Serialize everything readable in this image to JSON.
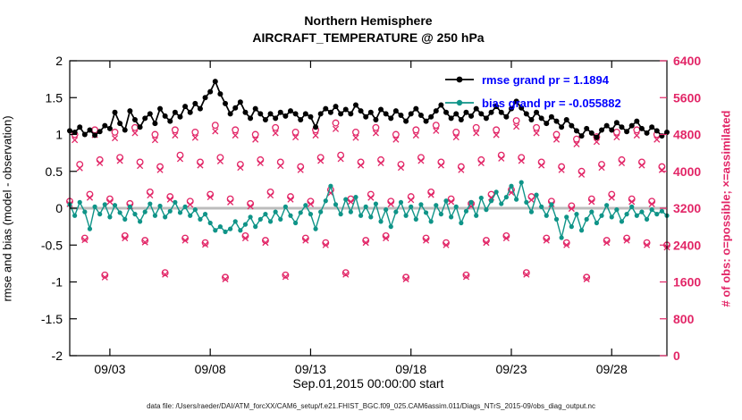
{
  "title": {
    "line1": "Northern Hemisphere",
    "line2": "AIRCRAFT_TEMPERATURE @ 250 hPa"
  },
  "axes": {
    "left_label": "rmse and bias (model - observation)",
    "right_label": "# of obs: o=possible; ×=assimilated",
    "x_label": "Sep.01,2015 00:00:00 start",
    "left_ticks": [
      "2",
      "1.5",
      "1",
      "0.5",
      "0",
      "-0.5",
      "-1",
      "-1.5",
      "-2"
    ],
    "right_ticks": [
      "6400",
      "5600",
      "4800",
      "4000",
      "3200",
      "2400",
      "1600",
      "800",
      "0"
    ],
    "x_ticks": [
      "09/03",
      "09/08",
      "09/13",
      "09/18",
      "09/23",
      "09/28"
    ]
  },
  "legend": {
    "entries": [
      {
        "label": "rmse grand pr = 1.1894",
        "series": "rmse"
      },
      {
        "label": "bias grand pr = -0.055882",
        "series": "bias"
      }
    ]
  },
  "footer": "data file: /Users/raeder/DAI/ATM_forcXX/CAM6_setup/f.e21.FHIST_BGC.f09_025.CAM6assim.011/Diags_NTrS_2015-09/obs_diag_output.nc",
  "colors": {
    "rmse": "#000000",
    "bias": "#0f9488",
    "obs": "#e22667",
    "legend_text": "#0000ff",
    "zero_line": "#bcbcbc",
    "axis": "#000000"
  },
  "chart_data": {
    "type": "line",
    "title": "Northern Hemisphere / AIRCRAFT_TEMPERATURE @ 250 hPa",
    "x_start_day": 1.0,
    "x_step_days": 0.25,
    "x_range_days": [
      1.0,
      30.75
    ],
    "x_tick_days": [
      3,
      8,
      13,
      18,
      23,
      28
    ],
    "ylim_left": [
      -2,
      2
    ],
    "ylim_right": [
      0,
      6400
    ],
    "grid": false,
    "legend_position": "top-right-inside",
    "series": {
      "rmse": {
        "axis": "left",
        "style": "line+dot",
        "grand_pr": 1.1894,
        "values": [
          1.05,
          1.03,
          1.1,
          1.0,
          1.06,
          0.99,
          1.04,
          1.12,
          1.08,
          1.3,
          1.15,
          1.06,
          1.32,
          1.2,
          1.1,
          1.22,
          1.28,
          1.15,
          1.35,
          1.25,
          1.18,
          1.3,
          1.24,
          1.38,
          1.3,
          1.42,
          1.35,
          1.5,
          1.58,
          1.72,
          1.55,
          1.42,
          1.28,
          1.36,
          1.44,
          1.3,
          1.22,
          1.35,
          1.28,
          1.2,
          1.28,
          1.22,
          1.3,
          1.25,
          1.32,
          1.28,
          1.2,
          1.28,
          1.24,
          1.1,
          1.28,
          1.35,
          1.3,
          1.38,
          1.28,
          1.34,
          1.28,
          1.4,
          1.32,
          1.24,
          1.3,
          1.2,
          1.34,
          1.28,
          1.22,
          1.32,
          1.26,
          1.18,
          1.28,
          1.35,
          1.26,
          1.18,
          1.24,
          1.32,
          1.4,
          1.3,
          1.22,
          1.28,
          1.2,
          1.3,
          1.25,
          1.35,
          1.28,
          1.22,
          1.3,
          1.38,
          1.3,
          1.24,
          1.35,
          1.45,
          1.36,
          1.28,
          1.2,
          1.3,
          1.22,
          1.15,
          1.24,
          1.18,
          1.1,
          1.2,
          1.12,
          1.05,
          0.98,
          1.08,
          1.02,
          0.96,
          1.06,
          1.12,
          1.06,
          1.16,
          1.1,
          1.04,
          1.12,
          1.18,
          1.08,
          1.02,
          1.1,
          1.05,
          0.98,
          1.03
        ]
      },
      "bias": {
        "axis": "left",
        "style": "line+dot",
        "grand_pr": -0.055882,
        "values": [
          0.05,
          -0.1,
          0.08,
          -0.05,
          -0.28,
          0.02,
          -0.08,
          0.05,
          -0.12,
          0.04,
          -0.06,
          -0.15,
          0.02,
          -0.08,
          -0.18,
          -0.05,
          0.06,
          -0.1,
          0.03,
          -0.12,
          -0.04,
          0.08,
          -0.06,
          0.02,
          -0.1,
          -0.02,
          -0.15,
          -0.08,
          -0.2,
          -0.3,
          -0.25,
          -0.32,
          -0.28,
          -0.18,
          -0.3,
          -0.22,
          -0.12,
          -0.25,
          -0.15,
          -0.08,
          -0.18,
          -0.05,
          -0.15,
          0.02,
          -0.1,
          -0.2,
          -0.06,
          0.04,
          -0.08,
          -0.28,
          -0.05,
          0.1,
          0.3,
          0.05,
          -0.08,
          0.12,
          -0.05,
          0.15,
          -0.1,
          0.02,
          -0.12,
          0.06,
          -0.18,
          -0.02,
          -0.25,
          -0.05,
          0.08,
          -0.1,
          0.02,
          -0.15,
          0.05,
          -0.06,
          -0.18,
          0.04,
          -0.08,
          0.1,
          -0.12,
          0.02,
          -0.2,
          -0.04,
          0.08,
          -0.1,
          0.14,
          -0.02,
          0.1,
          0.22,
          0.06,
          0.15,
          0.3,
          0.12,
          0.35,
          0.08,
          -0.05,
          0.18,
          0.02,
          -0.1,
          0.05,
          -0.15,
          -0.4,
          -0.12,
          -0.25,
          -0.08,
          -0.3,
          -0.15,
          -0.05,
          -0.2,
          -0.1,
          0.04,
          -0.12,
          -0.02,
          -0.18,
          -0.08,
          0.02,
          -0.1,
          -0.05,
          -0.15,
          -0.02,
          -0.08,
          -0.04,
          -0.1
        ]
      },
      "obs_possible": {
        "axis": "right",
        "marker": "o",
        "values": [
          3350,
          4800,
          4150,
          2550,
          3500,
          4900,
          4250,
          1750,
          3400,
          4850,
          4300,
          2600,
          3300,
          4950,
          4200,
          2500,
          3550,
          4800,
          4100,
          1800,
          3450,
          4900,
          4350,
          2550,
          3350,
          4850,
          4200,
          2450,
          3500,
          5000,
          4300,
          1700,
          3400,
          4900,
          4150,
          2600,
          3300,
          4800,
          4250,
          2500,
          3550,
          4950,
          4200,
          1750,
          3450,
          4850,
          4100,
          2550,
          3350,
          4900,
          4300,
          2450,
          3600,
          5050,
          4350,
          1800,
          3400,
          4850,
          4200,
          2500,
          3500,
          4950,
          4250,
          2600,
          3350,
          4800,
          4150,
          1700,
          3450,
          4900,
          4300,
          2550,
          3550,
          5000,
          4200,
          2450,
          3400,
          4850,
          4100,
          1750,
          3300,
          4950,
          4250,
          2500,
          3500,
          4900,
          4350,
          2600,
          3600,
          5100,
          4300,
          1800,
          3450,
          4950,
          4200,
          2550,
          3350,
          4800,
          4100,
          2450,
          3250,
          4700,
          4000,
          1700,
          3400,
          4750,
          4150,
          2500,
          3500,
          4850,
          4250,
          2550,
          3400,
          4900,
          4200,
          2450,
          3350,
          4800,
          4100,
          2400
        ]
      },
      "obs_assimilated": {
        "axis": "right",
        "marker": "x",
        "values": [
          3290,
          4680,
          4070,
          2510,
          3430,
          4790,
          4180,
          1700,
          3340,
          4720,
          4230,
          2550,
          3240,
          4830,
          4120,
          2460,
          3480,
          4680,
          4030,
          1760,
          3390,
          4780,
          4270,
          2500,
          3280,
          4730,
          4130,
          2410,
          3440,
          4870,
          4220,
          1660,
          3330,
          4780,
          4080,
          2550,
          3240,
          4690,
          4180,
          2450,
          3480,
          4830,
          4120,
          1710,
          3390,
          4740,
          4030,
          2500,
          3290,
          4780,
          4230,
          2400,
          3530,
          4920,
          4270,
          1760,
          3340,
          4730,
          4130,
          2450,
          3430,
          4830,
          4180,
          2550,
          3290,
          4690,
          4080,
          1660,
          3380,
          4780,
          4230,
          2500,
          3490,
          4880,
          4130,
          2400,
          3340,
          4740,
          4030,
          1710,
          3240,
          4830,
          4180,
          2450,
          3430,
          4790,
          4280,
          2550,
          3540,
          4970,
          4230,
          1760,
          3380,
          4830,
          4130,
          2500,
          3290,
          4690,
          4030,
          2400,
          3190,
          4590,
          3930,
          1660,
          3340,
          4640,
          4080,
          2450,
          3430,
          4740,
          4180,
          2500,
          3340,
          4780,
          4130,
          2400,
          3290,
          4690,
          4030,
          2350
        ]
      }
    }
  }
}
